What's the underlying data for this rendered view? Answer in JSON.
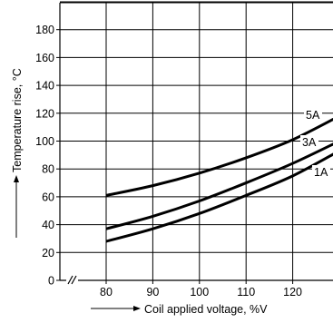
{
  "chart_data": {
    "type": "line",
    "xlabel": "Coil applied voltage, %V",
    "ylabel": "Temperature rise, °C",
    "x_ticks": [
      80,
      90,
      100,
      110,
      120
    ],
    "y_ticks": [
      0,
      20,
      40,
      60,
      80,
      100,
      120,
      140,
      160,
      180
    ],
    "y_tick_labels": [
      "0",
      "20",
      "40",
      "60",
      "80",
      "100",
      "120",
      "140",
      "160",
      "180"
    ],
    "x_tick_labels": [
      "80",
      "90",
      "100",
      "110",
      "120"
    ],
    "xlim": [
      80,
      130
    ],
    "ylim": [
      0,
      200
    ],
    "grid": true,
    "axis_break": true,
    "series": [
      {
        "name": "5A",
        "x": [
          80,
          90,
          100,
          110,
          120,
          130
        ],
        "y": [
          61,
          68,
          77,
          88,
          101,
          118
        ]
      },
      {
        "name": "3A",
        "x": [
          80,
          90,
          100,
          110,
          120,
          130
        ],
        "y": [
          37,
          46,
          57,
          70,
          84,
          100
        ]
      },
      {
        "name": "1A",
        "x": [
          80,
          90,
          100,
          110,
          120,
          130
        ],
        "y": [
          28,
          37,
          48,
          61,
          75,
          93
        ]
      }
    ],
    "colors": {
      "line": "#000000",
      "grid": "#000000"
    }
  }
}
